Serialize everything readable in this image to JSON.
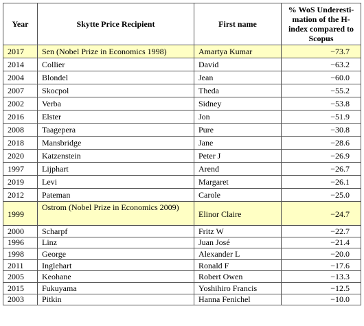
{
  "table": {
    "header": [
      "Year",
      "Skytte Price Recipient",
      "First name",
      "% WoS Underesti-mation of the H-index compared to Scopus"
    ],
    "highlight_rows": [
      0,
      12
    ],
    "rows": [
      [
        "2017",
        "Sen (Nobel Prize in Economics 1998)",
        "Amartya Kumar",
        "−73.7"
      ],
      [
        "2014",
        "Collier",
        "David",
        "−63.2"
      ],
      [
        "2004",
        "Blondel",
        "Jean",
        "−60.0"
      ],
      [
        "2007",
        "Skocpol",
        "Theda",
        "−55.2"
      ],
      [
        "2002",
        "Verba",
        "Sidney",
        "−53.8"
      ],
      [
        "2016",
        "Elster",
        "Jon",
        "−51.9"
      ],
      [
        "2008",
        "Taagepera",
        "Pure",
        "−30.8"
      ],
      [
        "2018",
        "Mansbridge",
        "Jane",
        "−28.6"
      ],
      [
        "2020",
        "Katzenstein",
        "Peter J",
        "−26.9"
      ],
      [
        "1997",
        "Lijphart",
        "Arend",
        "−26.7"
      ],
      [
        "2019",
        "Levi",
        "Margaret",
        "−26.1"
      ],
      [
        "2012",
        "Pateman",
        "Carole",
        "−25.0"
      ],
      [
        "1999",
        "Ostrom (Nobel Prize in Economics 2009)",
        "Elinor Claire",
        "−24.7"
      ],
      [
        "2000",
        "Scharpf",
        "Fritz W",
        "−22.7"
      ],
      [
        "1996",
        "Linz",
        "Juan José",
        "−21.4"
      ],
      [
        "1998",
        "George",
        "Alexander L",
        "−20.0"
      ],
      [
        "2011",
        "Inglehart",
        "Ronald F",
        "−17.6"
      ],
      [
        "2005",
        "Keohane",
        "Robert Owen",
        "−13.3"
      ],
      [
        "2015",
        "Fukuyama",
        "Yoshihiro Francis",
        "−12.5"
      ],
      [
        "2003",
        "Pitkin",
        "Hanna Fenichel",
        "−10.0"
      ]
    ]
  }
}
